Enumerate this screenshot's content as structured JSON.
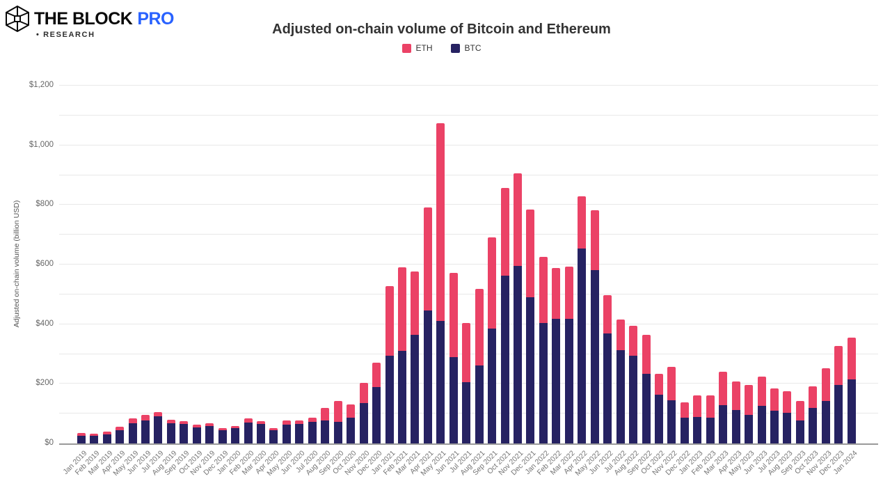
{
  "header": {
    "logo": {
      "brand": "THE BLOCK",
      "pro": "PRO",
      "research": "• RESEARCH",
      "pro_color": "#2962FF"
    },
    "title": "Adjusted on-chain volume of Bitcoin and Ethereum"
  },
  "legend": [
    {
      "label": "ETH",
      "color": "#EB4266"
    },
    {
      "label": "BTC",
      "color": "#262262"
    }
  ],
  "chart_data": {
    "type": "bar",
    "stacked": true,
    "title": "Adjusted on-chain volume of Bitcoin and Ethereum",
    "xlabel": "",
    "ylabel": "Adjusted on-chain volume (billion USD)",
    "ylim": [
      0,
      1200
    ],
    "grid_step": 100,
    "ytick_step": 200,
    "ytick_prefix": "$",
    "grid": true,
    "legend_position": "top",
    "categories": [
      "Jan 2019",
      "Feb 2019",
      "Mar 2019",
      "Apr 2019",
      "May 2019",
      "Jun 2019",
      "Jul 2019",
      "Aug 2019",
      "Sep 2019",
      "Oct 2019",
      "Nov 2019",
      "Dec 2019",
      "Jan 2020",
      "Feb 2020",
      "Mar 2020",
      "Apr 2020",
      "May 2020",
      "Jun 2020",
      "Jul 2020",
      "Aug 2020",
      "Sep 2020",
      "Oct 2020",
      "Nov 2020",
      "Dec 2020",
      "Jan 2021",
      "Feb 2021",
      "Mar 2021",
      "Apr 2021",
      "May 2021",
      "Jun 2021",
      "Jul 2021",
      "Aug 2021",
      "Sep 2021",
      "Oct 2021",
      "Nov 2021",
      "Dec 2021",
      "Jan 2022",
      "Feb 2022",
      "Mar 2022",
      "Apr 2022",
      "May 2022",
      "Jun 2022",
      "Jul 2022",
      "Aug 2022",
      "Sep 2022",
      "Oct 2022",
      "Nov 2022",
      "Dec 2022",
      "Jan 2023",
      "Feb 2023",
      "Mar 2023",
      "Apr 2023",
      "May 2023",
      "Jun 2023",
      "Jul 2023",
      "Aug 2023",
      "Sep 2023",
      "Oct 2023",
      "Nov 2023",
      "Dec 2023",
      "Jan 2024"
    ],
    "series": [
      {
        "name": "BTC",
        "color": "#262262",
        "values": [
          26,
          25,
          30,
          45,
          67,
          77,
          90,
          67,
          65,
          53,
          58,
          44,
          51,
          71,
          65,
          44,
          64,
          66,
          72,
          78,
          72,
          86,
          136,
          190,
          294,
          310,
          365,
          445,
          410,
          290,
          206,
          262,
          386,
          563,
          595,
          491,
          404,
          418,
          419,
          654,
          581,
          369,
          312,
          295,
          234,
          164,
          145,
          86,
          88,
          86,
          129,
          111,
          96,
          125,
          110,
          102,
          77,
          118,
          142,
          197,
          215
        ]
      },
      {
        "name": "ETH",
        "color": "#EB4266",
        "values": [
          9,
          7,
          9,
          11,
          16,
          18,
          16,
          13,
          10,
          10,
          9,
          8,
          8,
          12,
          10,
          7,
          13,
          10,
          15,
          42,
          71,
          45,
          68,
          80,
          233,
          280,
          211,
          346,
          663,
          281,
          198,
          257,
          306,
          293,
          310,
          294,
          222,
          171,
          175,
          176,
          201,
          128,
          103,
          100,
          130,
          70,
          113,
          51,
          74,
          76,
          112,
          96,
          100,
          100,
          75,
          72,
          65,
          74,
          110,
          129,
          140
        ]
      }
    ]
  }
}
